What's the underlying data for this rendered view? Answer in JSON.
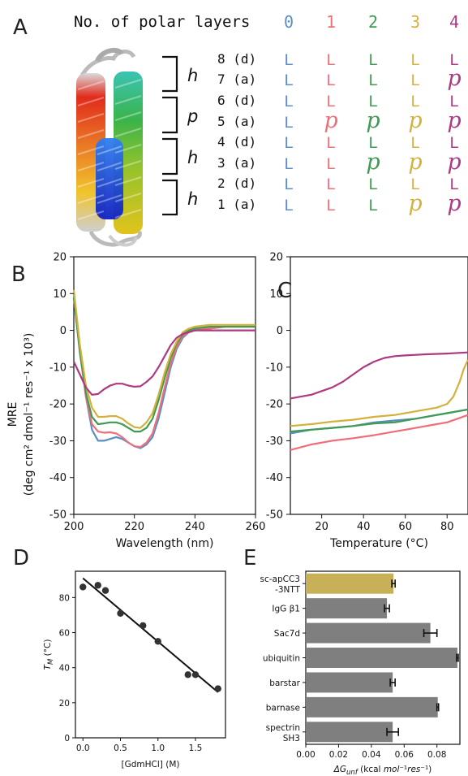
{
  "panels": {
    "A": "A",
    "B": "B",
    "C": "C",
    "D": "D",
    "E": "E"
  },
  "colors": {
    "series0": "#5b8ec6",
    "series1": "#ee6f7a",
    "series2": "#3f9a52",
    "series3": "#d4b03c",
    "series4": "#ad3a82",
    "bar_highlight": "#c7b058",
    "bar_default": "#7f7f7f"
  },
  "table_A": {
    "header": "No. of polar layers",
    "columns": [
      "0",
      "1",
      "2",
      "3",
      "4"
    ],
    "rows": [
      {
        "label": "8 (d)",
        "cells": [
          "L",
          "L",
          "L",
          "L",
          "L"
        ]
      },
      {
        "label": "7 (a)",
        "cells": [
          "L",
          "L",
          "L",
          "L",
          "P"
        ]
      },
      {
        "label": "6 (d)",
        "cells": [
          "L",
          "L",
          "L",
          "L",
          "L"
        ]
      },
      {
        "label": "5 (a)",
        "cells": [
          "L",
          "P",
          "P",
          "P",
          "P"
        ]
      },
      {
        "label": "4 (d)",
        "cells": [
          "L",
          "L",
          "L",
          "L",
          "L"
        ]
      },
      {
        "label": "3 (a)",
        "cells": [
          "L",
          "L",
          "P",
          "P",
          "P"
        ]
      },
      {
        "label": "2 (d)",
        "cells": [
          "L",
          "L",
          "L",
          "L",
          "L"
        ]
      },
      {
        "label": "1 (a)",
        "cells": [
          "L",
          "L",
          "L",
          "P",
          "P"
        ]
      }
    ],
    "brackets": [
      "h",
      "p",
      "h",
      "h"
    ]
  },
  "chart_data": [
    {
      "id": "B",
      "type": "line",
      "xlabel": "Wavelength (nm)",
      "ylabel_line1": "MRE",
      "ylabel_line2": "(deg cm² dmol⁻¹ res⁻¹ x 10³)",
      "xlim": [
        200,
        260
      ],
      "ylim": [
        -50,
        20
      ],
      "xticks": [
        200,
        220,
        240,
        260
      ],
      "yticks": [
        -50,
        -40,
        -30,
        -20,
        -10,
        0,
        10,
        20
      ],
      "series": [
        {
          "x": [
            200,
            202,
            204,
            206,
            208,
            210,
            212,
            214,
            216,
            218,
            220,
            222,
            224,
            226,
            228,
            230,
            232,
            234,
            236,
            238,
            240,
            245,
            250,
            255,
            260
          ],
          "y": [
            10,
            -5,
            -18,
            -27,
            -30,
            -30,
            -29.5,
            -29,
            -29.5,
            -30.5,
            -31.5,
            -32,
            -31,
            -29,
            -24,
            -17,
            -10,
            -5,
            -2,
            -0.5,
            0,
            0.5,
            1,
            1,
            1
          ]
        },
        {
          "x": [
            200,
            202,
            204,
            206,
            208,
            210,
            212,
            214,
            216,
            218,
            220,
            222,
            224,
            226,
            228,
            230,
            232,
            234,
            236,
            238,
            240,
            245,
            250,
            255,
            260
          ],
          "y": [
            9,
            -6,
            -18,
            -25.5,
            -27.5,
            -27.8,
            -27.7,
            -28,
            -29,
            -30.5,
            -31.5,
            -31.7,
            -30.5,
            -28,
            -22.5,
            -15.5,
            -9,
            -4.5,
            -1.5,
            -0.5,
            0,
            0.5,
            1,
            1,
            1
          ]
        },
        {
          "x": [
            200,
            202,
            204,
            206,
            208,
            210,
            212,
            214,
            216,
            218,
            220,
            222,
            224,
            226,
            228,
            230,
            232,
            234,
            236,
            238,
            240,
            245,
            250,
            255,
            260
          ],
          "y": [
            9,
            -6,
            -17,
            -23.5,
            -25.5,
            -25.3,
            -25,
            -25,
            -25.5,
            -26.5,
            -27.5,
            -27.5,
            -26.5,
            -24,
            -19,
            -13,
            -7.5,
            -3.5,
            -1,
            0,
            0.5,
            1,
            1,
            1,
            1
          ]
        },
        {
          "x": [
            200,
            202,
            204,
            206,
            208,
            210,
            212,
            214,
            216,
            218,
            220,
            222,
            224,
            226,
            228,
            230,
            232,
            234,
            236,
            238,
            240,
            245,
            250,
            255,
            260
          ],
          "y": [
            11,
            -4,
            -15,
            -21,
            -23.5,
            -23.5,
            -23.3,
            -23.3,
            -24,
            -25.3,
            -26.3,
            -26.5,
            -25,
            -22.5,
            -17.5,
            -11.5,
            -6.5,
            -3,
            -0.5,
            0.5,
            1,
            1.5,
            1.5,
            1.5,
            1.5
          ]
        },
        {
          "x": [
            200,
            202,
            204,
            206,
            208,
            210,
            212,
            214,
            216,
            218,
            220,
            222,
            224,
            226,
            228,
            230,
            232,
            234,
            236,
            238,
            240,
            245,
            250,
            255,
            260
          ],
          "y": [
            -8.5,
            -12,
            -15.5,
            -17.5,
            -17.3,
            -16,
            -15,
            -14.5,
            -14.5,
            -15,
            -15.3,
            -15.2,
            -14,
            -12.5,
            -10,
            -7,
            -4,
            -2,
            -1,
            -0.5,
            0,
            0,
            0,
            0,
            0
          ]
        }
      ]
    },
    {
      "id": "C",
      "type": "line",
      "xlabel": "Temperature (°C)",
      "xlim": [
        5,
        90
      ],
      "ylim": [
        -50,
        20
      ],
      "xticks": [
        20,
        40,
        60,
        80
      ],
      "yticks": [
        -50,
        -40,
        -30,
        -20,
        -10,
        0,
        10,
        20
      ],
      "series": [
        {
          "x": [
            5,
            15,
            25,
            35,
            45,
            55,
            65,
            75,
            80,
            85,
            90
          ],
          "y": [
            -28,
            -27,
            -26.5,
            -26,
            -25,
            -24.5,
            -24,
            -23,
            -22.5,
            -22,
            -21.5
          ]
        },
        {
          "x": [
            5,
            15,
            25,
            35,
            45,
            55,
            65,
            75,
            80,
            85,
            90
          ],
          "y": [
            -32.5,
            -31,
            -30,
            -29.3,
            -28.5,
            -27.5,
            -26.5,
            -25.5,
            -25,
            -24,
            -23
          ]
        },
        {
          "x": [
            5,
            15,
            25,
            35,
            45,
            55,
            65,
            75,
            80,
            85,
            90
          ],
          "y": [
            -27.5,
            -27,
            -26.5,
            -26,
            -25.3,
            -25,
            -24,
            -23,
            -22.5,
            -22,
            -21.5
          ]
        },
        {
          "x": [
            5,
            15,
            25,
            35,
            45,
            55,
            65,
            70,
            75,
            80,
            83,
            86,
            88,
            90
          ],
          "y": [
            -26,
            -25.5,
            -24.8,
            -24.3,
            -23.5,
            -23,
            -22,
            -21.5,
            -21,
            -20,
            -18,
            -14,
            -10.5,
            -8
          ]
        },
        {
          "x": [
            5,
            10,
            15,
            20,
            25,
            30,
            35,
            40,
            45,
            50,
            55,
            60,
            70,
            80,
            90
          ],
          "y": [
            -18.5,
            -18,
            -17.5,
            -16.5,
            -15.5,
            -14,
            -12,
            -10,
            -8.5,
            -7.5,
            -7,
            -6.8,
            -6.5,
            -6.3,
            -6
          ]
        }
      ]
    },
    {
      "id": "D",
      "type": "scatter",
      "xlabel": "[GdmHCl] (M)",
      "ylabel": "T_M (°C)",
      "xlim": [
        -0.1,
        1.9
      ],
      "ylim": [
        0,
        95
      ],
      "xticks": [
        "0.0",
        "0.5",
        "1.0",
        "1.5"
      ],
      "yticks": [
        0,
        20,
        40,
        60,
        80
      ],
      "x": [
        0.0,
        0.2,
        0.3,
        0.5,
        0.8,
        1.0,
        1.4,
        1.5,
        1.8
      ],
      "y": [
        86,
        87,
        84,
        71,
        64,
        55,
        36,
        36,
        28
      ],
      "fit": {
        "x": [
          0.0,
          1.8
        ],
        "y": [
          91,
          26
        ]
      }
    },
    {
      "id": "E",
      "type": "bar",
      "orientation": "horizontal",
      "xlabel_parts": [
        "ΔG",
        "unf",
        " (kcal ",
        "mol",
        "⁻¹",
        "res",
        "⁻¹",
        ")"
      ],
      "xlim": [
        0.0,
        0.094
      ],
      "xticks": [
        "0.00",
        "0.02",
        "0.04",
        "0.06",
        "0.08"
      ],
      "categories": [
        {
          "line1": "sc-apCC3",
          "line2": "-3NTT"
        },
        {
          "line1": "IgG β1",
          "line2": ""
        },
        {
          "line1": "Sac7d",
          "line2": ""
        },
        {
          "line1": "ubiquitin",
          "line2": ""
        },
        {
          "line1": "barstar",
          "line2": ""
        },
        {
          "line1": "barnase",
          "line2": ""
        },
        {
          "line1": "spectrin",
          "line2": "SH3"
        }
      ],
      "values": [
        0.0535,
        0.0495,
        0.076,
        0.0925,
        0.053,
        0.0805,
        0.053
      ],
      "errors": [
        0.001,
        0.0015,
        0.004,
        0.0005,
        0.0015,
        0.0005,
        0.0035
      ]
    }
  ]
}
